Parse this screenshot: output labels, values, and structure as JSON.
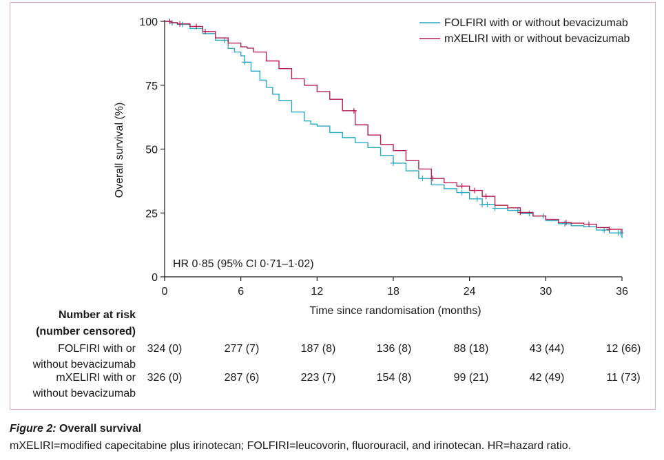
{
  "chart_data": {
    "type": "line",
    "subtype": "kaplan-meier",
    "ylabel": "Overall survival (%)",
    "xlabel": "Time since randomisation (months)",
    "xlim": [
      0,
      36
    ],
    "ylim": [
      0,
      100
    ],
    "x_ticks": [
      "0",
      "6",
      "12",
      "18",
      "24",
      "30",
      "36"
    ],
    "y_ticks": [
      "0",
      "25",
      "50",
      "75",
      "100"
    ],
    "grid": false,
    "legend_position": "top-right",
    "annotation": "HR 0·85 (95% CI 0·71–1·02)",
    "series": [
      {
        "name": "FOLFIRI with or without bevacizumab",
        "color": "#2aa7c4",
        "points": [
          [
            0,
            100
          ],
          [
            0.5,
            99.4
          ],
          [
            1,
            98.8
          ],
          [
            2,
            97.2
          ],
          [
            3,
            95.2
          ],
          [
            4,
            92.6
          ],
          [
            5,
            89.4
          ],
          [
            5.5,
            88
          ],
          [
            6,
            86.5
          ],
          [
            6.3,
            84
          ],
          [
            6.8,
            80.5
          ],
          [
            7.5,
            77
          ],
          [
            8,
            74.2
          ],
          [
            8.5,
            71.5
          ],
          [
            9,
            69
          ],
          [
            10,
            64.5
          ],
          [
            11,
            61
          ],
          [
            11.5,
            59.8
          ],
          [
            12,
            59
          ],
          [
            13,
            56.5
          ],
          [
            14,
            54.5
          ],
          [
            15,
            52.5
          ],
          [
            16,
            50.6
          ],
          [
            17,
            47.5
          ],
          [
            18,
            44.5
          ],
          [
            19,
            41.5
          ],
          [
            20,
            38.5
          ],
          [
            21,
            36
          ],
          [
            22,
            34.5
          ],
          [
            23,
            33
          ],
          [
            24,
            30.5
          ],
          [
            25,
            28.3
          ],
          [
            26,
            26.8
          ],
          [
            27,
            26
          ],
          [
            28,
            24.8
          ],
          [
            29,
            23.8
          ],
          [
            30,
            22
          ],
          [
            31,
            20.8
          ],
          [
            32,
            20
          ],
          [
            33,
            19.6
          ],
          [
            34,
            18.3
          ],
          [
            35,
            17.2
          ],
          [
            36,
            15.2
          ]
        ],
        "censor_x": [
          0.6,
          1.4,
          4.7,
          6.3,
          18,
          20.3,
          23.4,
          24.6,
          25,
          25.4,
          26,
          27.8,
          28.7,
          29.8,
          31.5,
          34.6,
          35.7,
          35.9
        ]
      },
      {
        "name": "mXELIRI with or without bevacizumab",
        "color": "#b5214e",
        "points": [
          [
            0,
            100
          ],
          [
            0.5,
            99.5
          ],
          [
            1,
            99
          ],
          [
            2,
            98
          ],
          [
            3,
            96
          ],
          [
            4,
            93.5
          ],
          [
            5,
            91.5
          ],
          [
            6,
            90
          ],
          [
            6.5,
            89.5
          ],
          [
            7,
            88
          ],
          [
            8,
            84.5
          ],
          [
            9,
            81.5
          ],
          [
            10,
            77.5
          ],
          [
            11,
            75
          ],
          [
            12,
            72.5
          ],
          [
            13,
            69.5
          ],
          [
            14,
            65
          ],
          [
            15,
            59.5
          ],
          [
            16,
            55.5
          ],
          [
            17,
            51.8
          ],
          [
            18,
            49.4
          ],
          [
            19,
            45.5
          ],
          [
            20,
            42.2
          ],
          [
            21,
            38.5
          ],
          [
            22,
            36.8
          ],
          [
            23,
            35.5
          ],
          [
            24,
            33.8
          ],
          [
            25,
            31.5
          ],
          [
            26,
            28
          ],
          [
            27,
            27
          ],
          [
            28,
            25.2
          ],
          [
            29,
            23.8
          ],
          [
            30,
            22.5
          ],
          [
            31,
            21.2
          ],
          [
            32,
            21
          ],
          [
            33,
            20.6
          ],
          [
            34,
            19.3
          ],
          [
            35,
            18.6
          ],
          [
            36,
            17
          ]
        ],
        "censor_x": [
          0.4,
          1.2,
          2.5,
          3.2,
          14.9,
          21.1,
          23.4,
          24.4,
          25.3,
          28,
          31.6,
          33.4,
          35
        ]
      }
    ],
    "risk_table": {
      "header": "Number at risk\n(number censored)",
      "rows": [
        {
          "label": "FOLFIRI with or\nwithout bevacizumab",
          "values": [
            "324 (0)",
            "277 (7)",
            "187 (8)",
            "136 (8)",
            "88 (18)",
            "43 (44)",
            "12 (66)"
          ]
        },
        {
          "label": "mXELIRI with or\nwithout bevacizumab",
          "values": [
            "326 (0)",
            "287 (6)",
            "223 (7)",
            "154 (8)",
            "99 (21)",
            "42 (49)",
            "11 (73)"
          ]
        }
      ]
    }
  },
  "caption": {
    "prefix": "Figure 2:",
    "title": " Overall survival",
    "text": "mXELIRI=modified capecitabine plus irinotecan; FOLFIRI=leucovorin, fluorouracil, and irinotecan. HR=hazard ratio."
  }
}
